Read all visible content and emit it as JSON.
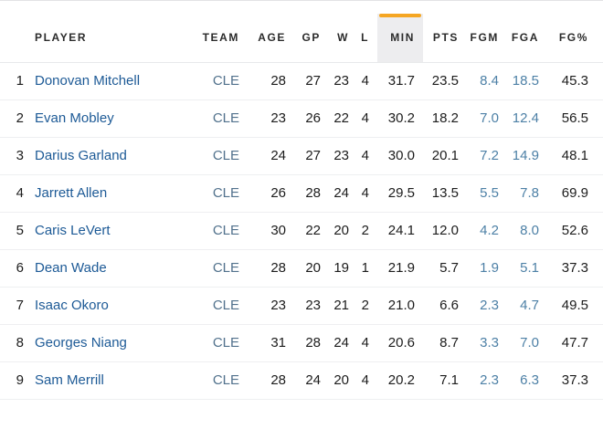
{
  "colors": {
    "accent_sort_bar": "#F5A623",
    "sorted_header_bg": "#EDEDEF",
    "player_link": "#1D5A96",
    "team_link": "#51718C",
    "highlight_stat": "#4D80A6",
    "header_text": "#2B2B2B",
    "body_text": "#1C1C1C"
  },
  "table": {
    "sorted_column": "MIN",
    "columns": {
      "rank": "",
      "player": "PLAYER",
      "team": "TEAM",
      "age": "AGE",
      "gp": "GP",
      "w": "W",
      "l": "L",
      "min": "MIN",
      "pts": "PTS",
      "fgm": "FGM",
      "fga": "FGA",
      "fgpct": "FG%"
    },
    "rows": [
      {
        "rank": "1",
        "player": "Donovan Mitchell",
        "team": "CLE",
        "age": "28",
        "gp": "27",
        "w": "23",
        "l": "4",
        "min": "31.7",
        "pts": "23.5",
        "fgm": "8.4",
        "fga": "18.5",
        "fgpct": "45.3"
      },
      {
        "rank": "2",
        "player": "Evan Mobley",
        "team": "CLE",
        "age": "23",
        "gp": "26",
        "w": "22",
        "l": "4",
        "min": "30.2",
        "pts": "18.2",
        "fgm": "7.0",
        "fga": "12.4",
        "fgpct": "56.5"
      },
      {
        "rank": "3",
        "player": "Darius Garland",
        "team": "CLE",
        "age": "24",
        "gp": "27",
        "w": "23",
        "l": "4",
        "min": "30.0",
        "pts": "20.1",
        "fgm": "7.2",
        "fga": "14.9",
        "fgpct": "48.1"
      },
      {
        "rank": "4",
        "player": "Jarrett Allen",
        "team": "CLE",
        "age": "26",
        "gp": "28",
        "w": "24",
        "l": "4",
        "min": "29.5",
        "pts": "13.5",
        "fgm": "5.5",
        "fga": "7.8",
        "fgpct": "69.9"
      },
      {
        "rank": "5",
        "player": "Caris LeVert",
        "team": "CLE",
        "age": "30",
        "gp": "22",
        "w": "20",
        "l": "2",
        "min": "24.1",
        "pts": "12.0",
        "fgm": "4.2",
        "fga": "8.0",
        "fgpct": "52.6"
      },
      {
        "rank": "6",
        "player": "Dean Wade",
        "team": "CLE",
        "age": "28",
        "gp": "20",
        "w": "19",
        "l": "1",
        "min": "21.9",
        "pts": "5.7",
        "fgm": "1.9",
        "fga": "5.1",
        "fgpct": "37.3"
      },
      {
        "rank": "7",
        "player": "Isaac Okoro",
        "team": "CLE",
        "age": "23",
        "gp": "23",
        "w": "21",
        "l": "2",
        "min": "21.0",
        "pts": "6.6",
        "fgm": "2.3",
        "fga": "4.7",
        "fgpct": "49.5"
      },
      {
        "rank": "8",
        "player": "Georges Niang",
        "team": "CLE",
        "age": "31",
        "gp": "28",
        "w": "24",
        "l": "4",
        "min": "20.6",
        "pts": "8.7",
        "fgm": "3.3",
        "fga": "7.0",
        "fgpct": "47.7"
      },
      {
        "rank": "9",
        "player": "Sam Merrill",
        "team": "CLE",
        "age": "28",
        "gp": "24",
        "w": "20",
        "l": "4",
        "min": "20.2",
        "pts": "7.1",
        "fgm": "2.3",
        "fga": "6.3",
        "fgpct": "37.3"
      }
    ]
  }
}
